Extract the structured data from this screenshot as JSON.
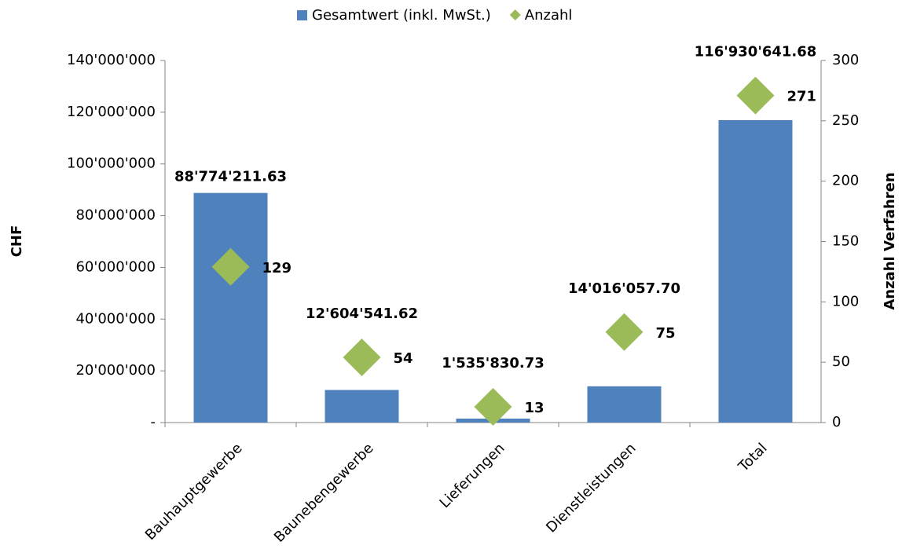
{
  "chart_data": {
    "type": "bar",
    "categories": [
      "Bauhauptgewerbe",
      "Baunebengewerbe",
      "Lieferungen",
      "Dienstleistungen",
      "Total"
    ],
    "series": [
      {
        "name": "Gesamtwert (inkl. MwSt.)",
        "type": "bar",
        "color": "#4f81bd",
        "values": [
          88774211.63,
          12604541.62,
          1535830.73,
          14016057.7,
          116930641.68
        ],
        "value_labels": [
          "88'774'211.63",
          "12'604'541.62",
          "1'535'830.73",
          "14'016'057.70",
          "116'930'641.68"
        ]
      },
      {
        "name": "Anzahl",
        "type": "scatter",
        "color": "#9bbb59",
        "axis": "y2",
        "values": [
          129,
          54,
          13,
          75,
          271
        ]
      }
    ],
    "ylabel": "CHF",
    "y2label": "Anzahl Verfahren",
    "ylim": [
      0,
      140000000
    ],
    "yticks": [
      {
        "value": 0,
        "label": "-"
      },
      {
        "value": 20000000,
        "label": "20'000'000"
      },
      {
        "value": 40000000,
        "label": "40'000'000"
      },
      {
        "value": 60000000,
        "label": "60'000'000"
      },
      {
        "value": 80000000,
        "label": "80'000'000"
      },
      {
        "value": 100000000,
        "label": "100'000'000"
      },
      {
        "value": 120000000,
        "label": "120'000'000"
      },
      {
        "value": 140000000,
        "label": "140'000'000"
      }
    ],
    "y2lim": [
      0,
      300
    ],
    "y2ticks": [
      0,
      50,
      100,
      150,
      200,
      250,
      300
    ],
    "legend": "top"
  }
}
